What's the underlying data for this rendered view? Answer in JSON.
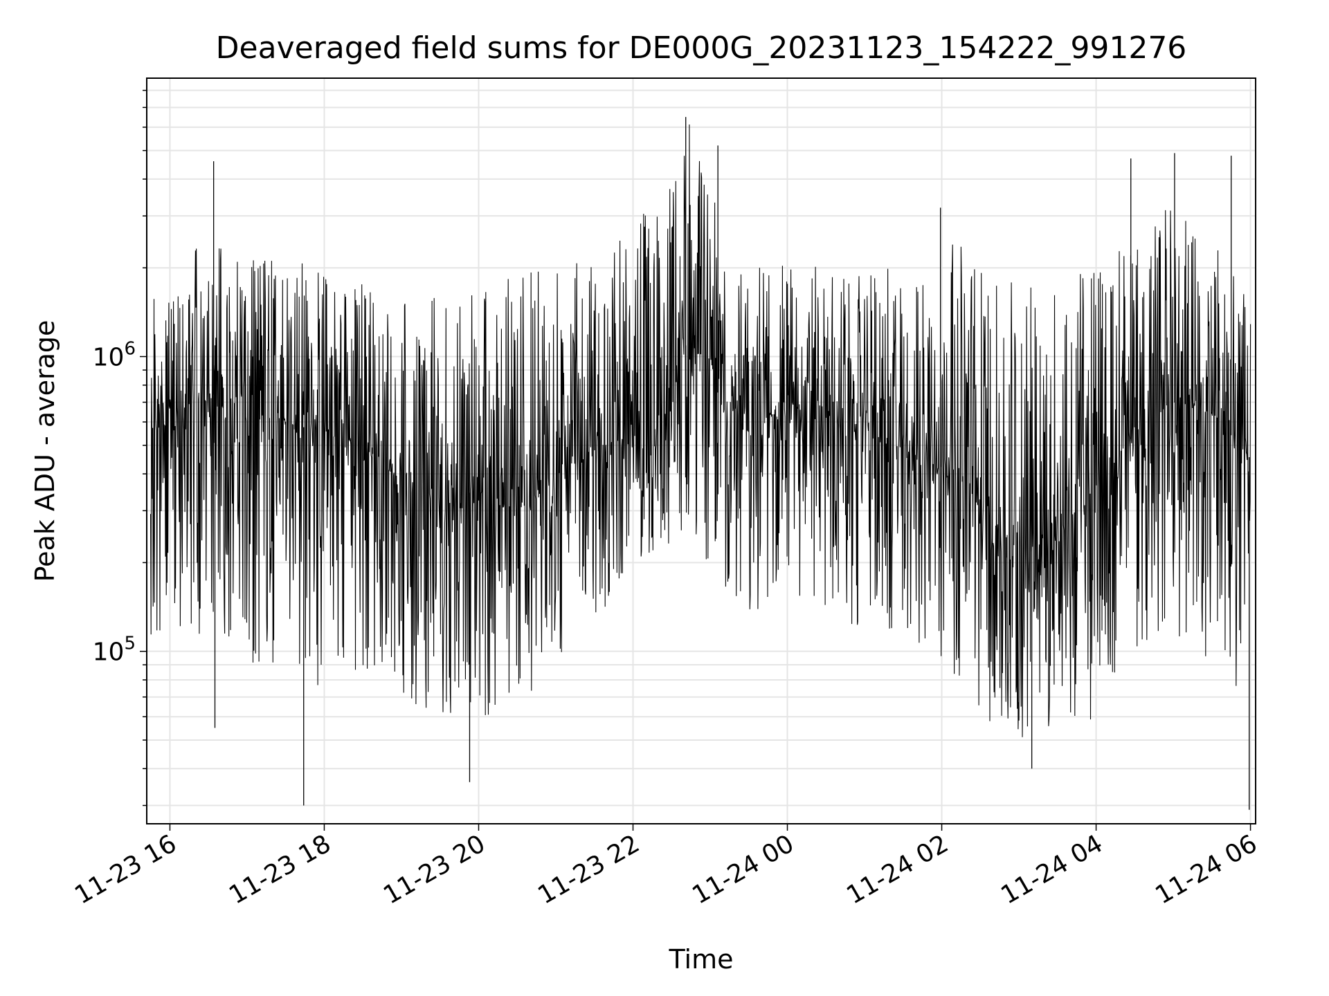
{
  "chart_data": {
    "type": "line",
    "title": "Deaveraged field sums for DE000G_20231123_154222_991276",
    "xlabel": "Time",
    "ylabel": "Peak ADU - average",
    "yscale": "log",
    "ylim": [
      26000,
      8800000
    ],
    "xlim": [
      "2023-11-23 15:42",
      "2023-11-24 06:04"
    ],
    "grid": true,
    "line_color": "#000000",
    "grid_color": "#e5e5e5",
    "x_ticks": [
      "11-23 16",
      "11-23 18",
      "11-23 20",
      "11-23 22",
      "11-24 00",
      "11-24 02",
      "11-24 04",
      "11-24 06"
    ],
    "x_tick_times": [
      "2023-11-23 16:00",
      "2023-11-23 18:00",
      "2023-11-23 20:00",
      "2023-11-23 22:00",
      "2023-11-24 00:00",
      "2023-11-24 02:00",
      "2023-11-24 04:00",
      "2023-11-24 06:00"
    ],
    "y_ticks": [
      {
        "value": 100000,
        "base": "10",
        "exp": "5"
      },
      {
        "value": 1000000,
        "base": "10",
        "exp": "6"
      }
    ],
    "series": [
      {
        "x": [
          "2023-11-23 15:45",
          "2023-11-23 16:00",
          "2023-11-23 16:30",
          "2023-11-23 17:00",
          "2023-11-23 17:30",
          "2023-11-23 18:00",
          "2023-11-23 18:30",
          "2023-11-23 19:00",
          "2023-11-23 19:30",
          "2023-11-23 20:00",
          "2023-11-23 20:30",
          "2023-11-23 21:00",
          "2023-11-23 21:30",
          "2023-11-23 22:00",
          "2023-11-23 22:30",
          "2023-11-23 22:45",
          "2023-11-23 23:00",
          "2023-11-23 23:30",
          "2023-11-24 00:00",
          "2023-11-24 00:30",
          "2023-11-24 01:00",
          "2023-11-24 01:30",
          "2023-11-24 02:00",
          "2023-11-24 02:10",
          "2023-11-24 02:30",
          "2023-11-24 03:00",
          "2023-11-24 03:30",
          "2023-11-24 04:00",
          "2023-11-24 04:30",
          "2023-11-24 05:00",
          "2023-11-24 05:30",
          "2023-11-24 06:00"
        ],
        "median": [
          450000,
          650000,
          750000,
          700000,
          600000,
          550000,
          500000,
          380000,
          330000,
          350000,
          300000,
          380000,
          480000,
          520000,
          650000,
          1300000,
          800000,
          600000,
          650000,
          620000,
          580000,
          480000,
          420000,
          450000,
          300000,
          220000,
          240000,
          350000,
          550000,
          700000,
          650000,
          450000
        ],
        "low": [
          90000,
          120000,
          110000,
          90000,
          80000,
          75000,
          80000,
          70000,
          60000,
          55000,
          60000,
          90000,
          120000,
          200000,
          220000,
          250000,
          180000,
          130000,
          140000,
          130000,
          120000,
          110000,
          90000,
          80000,
          60000,
          48000,
          50000,
          60000,
          100000,
          110000,
          90000,
          50000
        ],
        "high": [
          1500000,
          2200000,
          2500000,
          2500000,
          2300000,
          2000000,
          1900000,
          1600000,
          1600000,
          1800000,
          2000000,
          2000000,
          2300000,
          2800000,
          4000000,
          6500000,
          3500000,
          2300000,
          2100000,
          2000000,
          2000000,
          2000000,
          2200000,
          2500000,
          2200000,
          1700000,
          1800000,
          2200000,
          3200000,
          3500000,
          3000000,
          1500000
        ]
      }
    ],
    "spikes": [
      {
        "x": "2023-11-23 16:34",
        "y": 4600000
      },
      {
        "x": "2023-11-23 16:35",
        "y": 55000
      },
      {
        "x": "2023-11-23 17:44",
        "y": 30000
      },
      {
        "x": "2023-11-23 19:53",
        "y": 36000
      },
      {
        "x": "2023-11-23 22:41",
        "y": 6500000
      },
      {
        "x": "2023-11-23 23:06",
        "y": 5200000
      },
      {
        "x": "2023-11-24 01:59",
        "y": 3200000
      },
      {
        "x": "2023-11-24 03:10",
        "y": 40000
      },
      {
        "x": "2023-11-24 04:27",
        "y": 4700000
      },
      {
        "x": "2023-11-24 05:01",
        "y": 4900000
      },
      {
        "x": "2023-11-24 05:45",
        "y": 4800000
      },
      {
        "x": "2023-11-24 05:59",
        "y": 29000
      }
    ]
  }
}
